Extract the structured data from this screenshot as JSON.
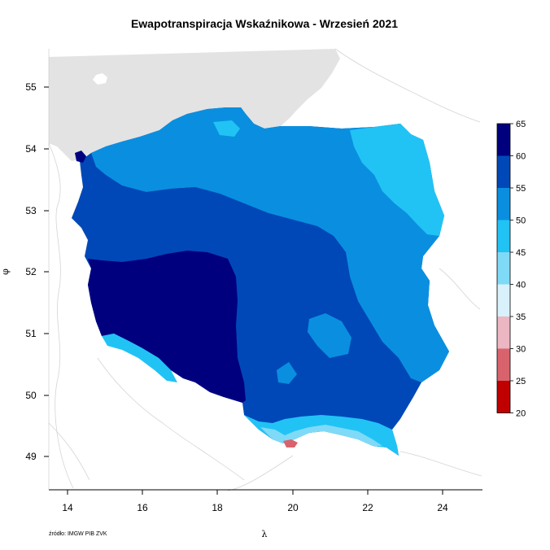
{
  "title": "Ewapotranspiracja Wskaźnikowa - Wrzesień 2021",
  "axes": {
    "x_label": "λ",
    "y_label": "φ",
    "x_ticks": [
      "14",
      "16",
      "18",
      "20",
      "22",
      "24"
    ],
    "y_ticks": [
      "55",
      "54",
      "53",
      "52",
      "51",
      "50",
      "49"
    ],
    "x_range": [
      13.5,
      25.0
    ],
    "y_range": [
      48.55,
      55.6
    ]
  },
  "source": "źródło: IMGW PIB ZVK",
  "legend": {
    "labels": [
      "65",
      "60",
      "55",
      "50",
      "45",
      "40",
      "35",
      "30",
      "25",
      "20"
    ],
    "colors": [
      "#00007f",
      "#0048b8",
      "#0a8fe0",
      "#21c3f5",
      "#7fdaf7",
      "#d9f1fb",
      "#ecb6c2",
      "#d9636d",
      "#c00000"
    ]
  },
  "palette": {
    "sea": "#e3e3e3",
    "zone_65": "#00007f",
    "zone_60": "#0048b8",
    "zone_55": "#0a8fe0",
    "zone_50": "#21c3f5",
    "zone_45": "#7fdaf7",
    "zone_40": "#d9f1fb",
    "zone_35": "#ecb6c2",
    "zone_30": "#d9636d"
  }
}
